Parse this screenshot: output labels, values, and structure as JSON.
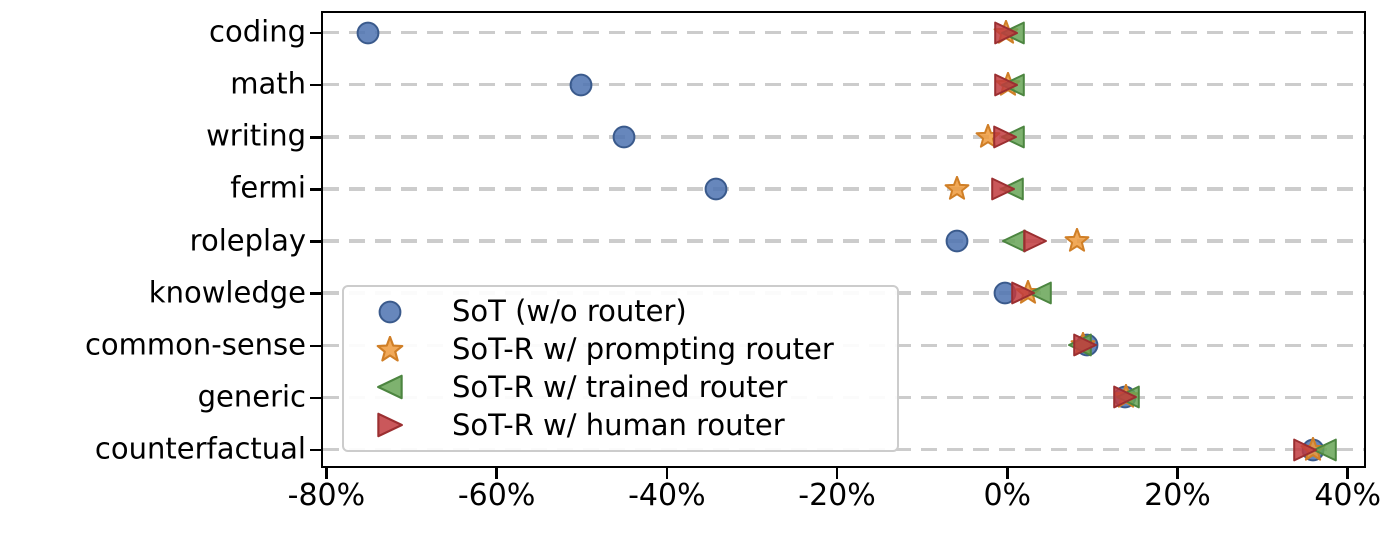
{
  "chart_data": {
    "type": "scatter",
    "title": "",
    "xlabel": "",
    "ylabel": "",
    "categories": [
      "coding",
      "math",
      "writing",
      "fermi",
      "roleplay",
      "knowledge",
      "common-sense",
      "generic",
      "counterfactual"
    ],
    "series": [
      {
        "name": "SoT (w/o router)",
        "marker": "circle",
        "color": "#4C72B0",
        "edge": "#3A5A8C",
        "values": [
          -75,
          -50,
          -45,
          -34.2,
          -5.9,
          -0.2,
          9.4,
          13.9,
          36.0
        ]
      },
      {
        "name": "SoT-R w/ prompting router",
        "marker": "star",
        "color": "#EE9A3C",
        "edge": "#D07F27",
        "values": [
          -0.1,
          0.1,
          -2.2,
          -5.8,
          8.2,
          2.5,
          9.0,
          14.0,
          36.0
        ]
      },
      {
        "name": "SoT-R w/ trained router",
        "marker": "triangle-left",
        "color": "#67A556",
        "edge": "#4C8540",
        "values": [
          0.7,
          0.7,
          0.7,
          0.6,
          0.8,
          3.9,
          8.6,
          14.2,
          37.4
        ]
      },
      {
        "name": "SoT-R w/ human router",
        "marker": "triangle-right",
        "color": "#C13B3E",
        "edge": "#9B2F31",
        "values": [
          -0.1,
          -0.1,
          -0.2,
          -0.5,
          3.3,
          1.9,
          9.2,
          13.9,
          35.1
        ]
      }
    ],
    "x_ticks": {
      "values": [
        -80,
        -60,
        -40,
        -20,
        0,
        20,
        40
      ],
      "labels": [
        "-80%",
        "-60%",
        "-40%",
        "-20%",
        "0%",
        "20%",
        "40%"
      ]
    },
    "xlim": [
      -80.4,
      41.8
    ],
    "grid": "horizontal-dashed",
    "grid_color": "#cccccc",
    "legend_position": "lower-left-inside",
    "legend_icons": [
      "circle-icon",
      "star-icon",
      "triangle-left-icon",
      "triangle-right-icon"
    ]
  }
}
